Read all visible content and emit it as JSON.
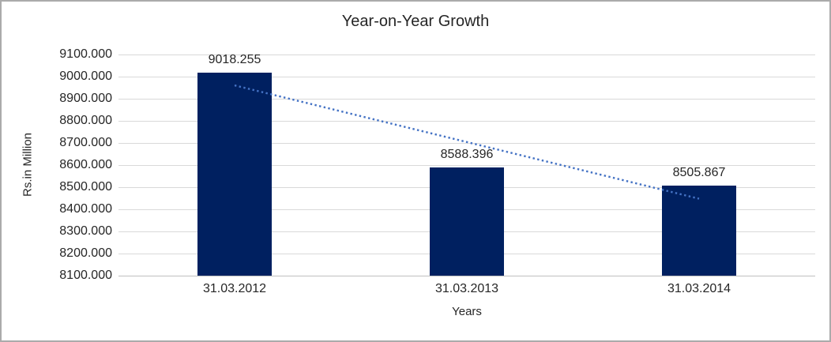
{
  "chart": {
    "title": "Year-on-Year Growth",
    "y_axis_title": "Rs.in Million",
    "x_axis_title": "Years"
  },
  "chart_data": {
    "type": "bar",
    "title": "Year-on-Year Growth",
    "xlabel": "Years",
    "ylabel": "Rs.in Million",
    "categories": [
      "31.03.2012",
      "31.03.2013",
      "31.03.2014"
    ],
    "values": [
      9018.255,
      8588.396,
      8505.867
    ],
    "value_labels": [
      "9018.255",
      "8588.396",
      "8505.867"
    ],
    "ylim": [
      8100,
      9100
    ],
    "y_tick_step": 100,
    "y_tick_labels": [
      "9100.000",
      "9000.000",
      "8900.000",
      "8800.000",
      "8700.000",
      "8600.000",
      "8500.000",
      "8400.000",
      "8300.000",
      "8200.000",
      "8100.000"
    ],
    "grid": true,
    "legend": false,
    "trendline": {
      "type": "linear",
      "style": "dotted"
    },
    "colors": {
      "bar": "#002060",
      "trendline": "#4472C4",
      "gridline": "#D9D9D9",
      "axis_line": "#BFBFBF",
      "text": "#262626",
      "frame_border": "#ABABAB",
      "background": "#FFFFFF"
    }
  }
}
